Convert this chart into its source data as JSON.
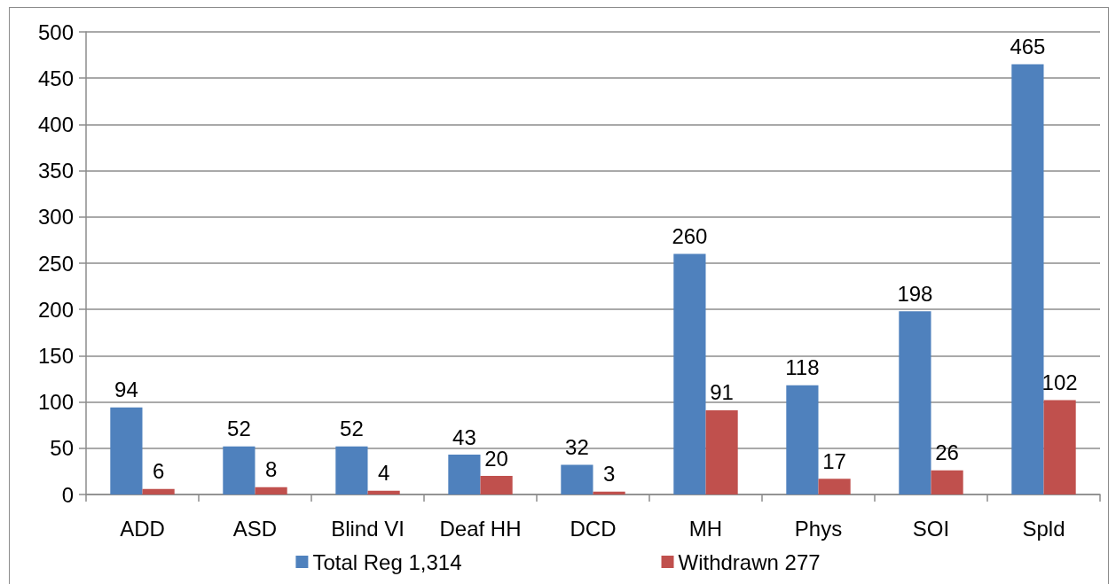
{
  "chart_data": {
    "type": "bar",
    "categories": [
      "ADD",
      "ASD",
      "Blind VI",
      "Deaf HH",
      "DCD",
      "MH",
      "Phys",
      "SOI",
      "Spld"
    ],
    "series": [
      {
        "name": "Total Reg 1,314",
        "color": "#4f81bd",
        "values": [
          94,
          52,
          52,
          43,
          32,
          260,
          118,
          198,
          465
        ]
      },
      {
        "name": "Withdrawn 277",
        "color": "#c0504d",
        "values": [
          6,
          8,
          4,
          20,
          3,
          91,
          17,
          26,
          102
        ]
      }
    ],
    "ylim": [
      0,
      500
    ],
    "yticks": [
      0,
      50,
      100,
      150,
      200,
      250,
      300,
      350,
      400,
      450,
      500
    ],
    "grid": "y",
    "legend": "bottom",
    "data_labels": true
  }
}
